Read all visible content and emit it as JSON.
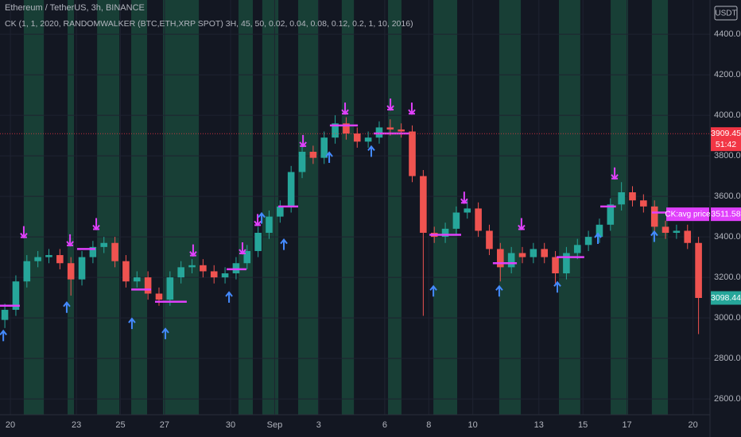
{
  "chart_data": {
    "type": "candlestick",
    "title": "Ethereum / TetherUS, 3h, BINANCE",
    "subtitle": "CK (1, 1, 2020, RANDOMWALKER (BTC,ETH,XRP SPOT) 3H, 45, 50, 0.02, 0.04, 0.08, 0.12, 0.2, 1, 10, 2016)",
    "currency": "USDT",
    "up_color": "#26a69a",
    "down_color": "#ef5350",
    "band_color": "#1b4d3e",
    "sell_color": "#e040fb",
    "buy_color": "#448aff",
    "avg_color": "#e040fb",
    "grid": true,
    "xlim": [
      -0.47,
      31.77
    ],
    "ylim": [
      2522,
      4569
    ],
    "xticks": [
      {
        "value": 0,
        "label": "20"
      },
      {
        "value": 3,
        "label": "23"
      },
      {
        "value": 5,
        "label": "25"
      },
      {
        "value": 7,
        "label": "27"
      },
      {
        "value": 10,
        "label": "30"
      },
      {
        "value": 12,
        "label": "Sep"
      },
      {
        "value": 14,
        "label": "3"
      },
      {
        "value": 17,
        "label": "6"
      },
      {
        "value": 19,
        "label": "8"
      },
      {
        "value": 21,
        "label": "10"
      },
      {
        "value": 24,
        "label": "13"
      },
      {
        "value": 26,
        "label": "15"
      },
      {
        "value": 28,
        "label": "17"
      },
      {
        "value": 31,
        "label": "20"
      }
    ],
    "yticks": [
      {
        "value": 2600,
        "label": "2600.00"
      },
      {
        "value": 2800,
        "label": "2800.00"
      },
      {
        "value": 3000,
        "label": "3000.00"
      },
      {
        "value": 3200,
        "label": "3200.00"
      },
      {
        "value": 3400,
        "label": "3400.00"
      },
      {
        "value": 3600,
        "label": "3600.00"
      },
      {
        "value": 3800,
        "label": "3800.00"
      },
      {
        "value": 4000,
        "label": "4000.00"
      },
      {
        "value": 4200,
        "label": "4200.00"
      },
      {
        "value": 4400,
        "label": "4400.00"
      }
    ],
    "x": [
      -0.25,
      0.25,
      0.75,
      1.25,
      1.75,
      2.25,
      2.75,
      3.25,
      3.75,
      4.25,
      4.75,
      5.25,
      5.75,
      6.25,
      6.75,
      7.25,
      7.75,
      8.25,
      8.75,
      9.25,
      9.75,
      10.25,
      10.75,
      11.25,
      11.75,
      12.25,
      12.75,
      13.25,
      13.75,
      14.25,
      14.75,
      15.25,
      15.75,
      16.25,
      16.75,
      17.25,
      17.75,
      18.25,
      18.75,
      19.25,
      19.75,
      20.25,
      20.75,
      21.25,
      21.75,
      22.25,
      22.75,
      23.25,
      23.75,
      24.25,
      24.75,
      25.25,
      25.75,
      26.25,
      26.75,
      27.25,
      27.75,
      28.25,
      28.75,
      29.25,
      29.75,
      30.25,
      30.75,
      31.25
    ],
    "open": [
      2990,
      3040,
      3180,
      3280,
      3300,
      3310,
      3270,
      3190,
      3300,
      3350,
      3370,
      3280,
      3180,
      3200,
      3120,
      3090,
      3200,
      3250,
      3260,
      3230,
      3200,
      3220,
      3270,
      3330,
      3420,
      3500,
      3550,
      3720,
      3820,
      3790,
      3890,
      3960,
      3910,
      3870,
      3890,
      3940,
      3930,
      3920,
      3700,
      3420,
      3400,
      3440,
      3520,
      3540,
      3430,
      3340,
      3250,
      3320,
      3300,
      3340,
      3300,
      3220,
      3320,
      3360,
      3400,
      3460,
      3560,
      3620,
      3580,
      3550,
      3450,
      3420,
      3430,
      3370
    ],
    "high": [
      3070,
      3210,
      3310,
      3330,
      3340,
      3340,
      3300,
      3330,
      3380,
      3400,
      3400,
      3310,
      3230,
      3230,
      3150,
      3230,
      3280,
      3290,
      3290,
      3260,
      3250,
      3300,
      3360,
      3450,
      3530,
      3580,
      3750,
      3850,
      3850,
      3920,
      4000,
      3990,
      3940,
      3920,
      3970,
      3980,
      3960,
      3950,
      3730,
      3450,
      3470,
      3550,
      3580,
      3570,
      3460,
      3370,
      3350,
      3350,
      3370,
      3370,
      3330,
      3350,
      3390,
      3430,
      3490,
      3590,
      3670,
      3650,
      3610,
      3580,
      3480,
      3460,
      3460,
      3400
    ],
    "low": [
      2950,
      3010,
      3150,
      3250,
      3270,
      3240,
      3110,
      3160,
      3270,
      3320,
      3250,
      3150,
      3150,
      3090,
      3060,
      3060,
      3170,
      3220,
      3200,
      3170,
      3170,
      3190,
      3240,
      3300,
      3390,
      3470,
      3520,
      3690,
      3760,
      3760,
      3860,
      3880,
      3840,
      3840,
      3860,
      3900,
      3890,
      3670,
      3010,
      3370,
      3370,
      3410,
      3490,
      3400,
      3310,
      3180,
      3220,
      3270,
      3270,
      3270,
      3170,
      3190,
      3290,
      3330,
      3370,
      3430,
      3530,
      3550,
      3520,
      3420,
      3390,
      3390,
      3340,
      2920
    ],
    "close": [
      3040,
      3180,
      3280,
      3300,
      3310,
      3270,
      3190,
      3300,
      3350,
      3370,
      3280,
      3180,
      3200,
      3120,
      3090,
      3200,
      3250,
      3260,
      3230,
      3200,
      3220,
      3270,
      3330,
      3420,
      3500,
      3550,
      3720,
      3820,
      3790,
      3890,
      3960,
      3910,
      3870,
      3890,
      3940,
      3930,
      3920,
      3700,
      3420,
      3400,
      3440,
      3520,
      3540,
      3430,
      3340,
      3250,
      3320,
      3300,
      3340,
      3300,
      3220,
      3320,
      3360,
      3400,
      3460,
      3560,
      3620,
      3580,
      3550,
      3450,
      3420,
      3430,
      3370,
      3098.44
    ],
    "signal_bands": [
      [
        0.61,
        1.52
      ],
      [
        2.6,
        2.89
      ],
      [
        3.94,
        4.95
      ],
      [
        5.49,
        6.21
      ],
      [
        6.93,
        8.56
      ],
      [
        10.36,
        11.01
      ],
      [
        11.44,
        12.17
      ],
      [
        13.07,
        13.97
      ],
      [
        15.05,
        15.6
      ],
      [
        17.15,
        17.76
      ],
      [
        19.21,
        20.29
      ],
      [
        22.2,
        23.18
      ],
      [
        24.91,
        25.88
      ],
      [
        27.26,
        28.05
      ],
      [
        29.13,
        29.86
      ]
    ],
    "sell_signals": [
      {
        "x": 0.61,
        "y": 3390
      },
      {
        "x": 2.71,
        "y": 3350
      },
      {
        "x": 3.9,
        "y": 3430
      },
      {
        "x": 8.3,
        "y": 3300
      },
      {
        "x": 10.54,
        "y": 3310
      },
      {
        "x": 11.23,
        "y": 3450
      },
      {
        "x": 13.29,
        "y": 3840
      },
      {
        "x": 15.2,
        "y": 4000
      },
      {
        "x": 17.26,
        "y": 4020
      },
      {
        "x": 18.23,
        "y": 4000
      },
      {
        "x": 20.61,
        "y": 3560
      },
      {
        "x": 23.21,
        "y": 3430
      },
      {
        "x": 27.44,
        "y": 3680
      }
    ],
    "buy_signals": [
      {
        "x": -0.32,
        "y": 2940
      },
      {
        "x": 2.56,
        "y": 3080
      },
      {
        "x": 5.52,
        "y": 3000
      },
      {
        "x": 7.04,
        "y": 2950
      },
      {
        "x": 9.93,
        "y": 3130
      },
      {
        "x": 11.41,
        "y": 3520
      },
      {
        "x": 12.42,
        "y": 3390
      },
      {
        "x": 14.48,
        "y": 3820
      },
      {
        "x": 16.39,
        "y": 3850
      },
      {
        "x": 19.21,
        "y": 3160
      },
      {
        "x": 22.2,
        "y": 3160
      },
      {
        "x": 24.84,
        "y": 3180
      },
      {
        "x": 26.68,
        "y": 3420
      },
      {
        "x": 29.24,
        "y": 3430
      }
    ],
    "avg_price_segments": [
      [
        -0.47,
        0.43,
        3060
      ],
      [
        3.03,
        3.86,
        3340
      ],
      [
        5.49,
        6.39,
        3140
      ],
      [
        6.57,
        8.01,
        3080
      ],
      [
        9.82,
        10.72,
        3240
      ],
      [
        12.17,
        13.07,
        3550
      ],
      [
        14.51,
        15.78,
        3950
      ],
      [
        16.5,
        18.12,
        3910
      ],
      [
        19.03,
        20.47,
        3410
      ],
      [
        21.91,
        23.0,
        3270
      ],
      [
        24.8,
        26.06,
        3300
      ],
      [
        26.79,
        27.5,
        3550
      ],
      [
        29.13,
        30.22,
        3520
      ]
    ],
    "price_tags": [
      {
        "value": 3909.45,
        "color": "#f23645",
        "countdown": "51:42"
      },
      {
        "value": 3098.44,
        "color": "#26a69a"
      },
      {
        "value": 3511.58,
        "color": "#e040fb",
        "name": "CK:avg price"
      }
    ]
  }
}
